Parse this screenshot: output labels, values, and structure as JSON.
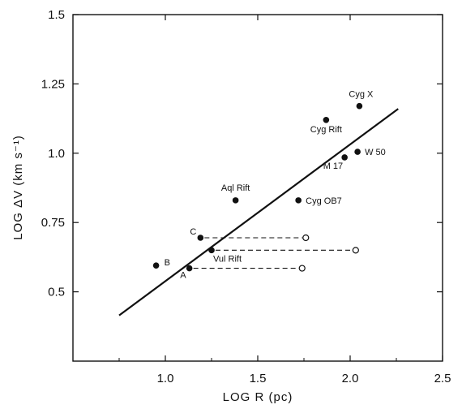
{
  "chart_data": {
    "type": "scatter",
    "title": "",
    "xlabel": "LOG R (pc)",
    "ylabel": "LOG ΔV (km s⁻¹)",
    "xlim": [
      0.5,
      2.5
    ],
    "ylim": [
      0.25,
      1.5
    ],
    "x_ticks": [
      1.0,
      1.5,
      2.0,
      2.5
    ],
    "x_tick_labels": [
      "1.0",
      "1.5",
      "2.0",
      "2.5"
    ],
    "y_ticks": [
      0.5,
      0.75,
      1.0,
      1.25,
      1.5
    ],
    "y_tick_labels": [
      "0.5",
      "0.75",
      "1.0",
      "1.25",
      "1.5"
    ],
    "grid": false,
    "legend": "none",
    "points": [
      {
        "label": "B",
        "x": 0.95,
        "y": 0.595
      },
      {
        "label": "A",
        "x": 1.13,
        "y": 0.585
      },
      {
        "label": "C",
        "x": 1.19,
        "y": 0.695
      },
      {
        "label": "Vul Rift",
        "x": 1.25,
        "y": 0.65
      },
      {
        "label": "Aql Rift",
        "x": 1.38,
        "y": 0.83
      },
      {
        "label": "Cyg OB7",
        "x": 1.72,
        "y": 0.83
      },
      {
        "label": "M 17",
        "x": 1.97,
        "y": 0.985
      },
      {
        "label": "W 50",
        "x": 2.04,
        "y": 1.005
      },
      {
        "label": "Cyg Rift",
        "x": 1.87,
        "y": 1.12
      },
      {
        "label": "Cyg X",
        "x": 2.05,
        "y": 1.17
      }
    ],
    "extensions": [
      {
        "from": "C",
        "x0": 1.19,
        "x1": 1.76,
        "y": 0.695
      },
      {
        "from": "Vul Rift",
        "x0": 1.25,
        "x1": 2.03,
        "y": 0.65
      },
      {
        "from": "A",
        "x0": 1.13,
        "x1": 1.74,
        "y": 0.585
      }
    ],
    "fit_line": {
      "x": [
        0.75,
        2.26
      ],
      "y": [
        0.415,
        1.16
      ]
    }
  }
}
